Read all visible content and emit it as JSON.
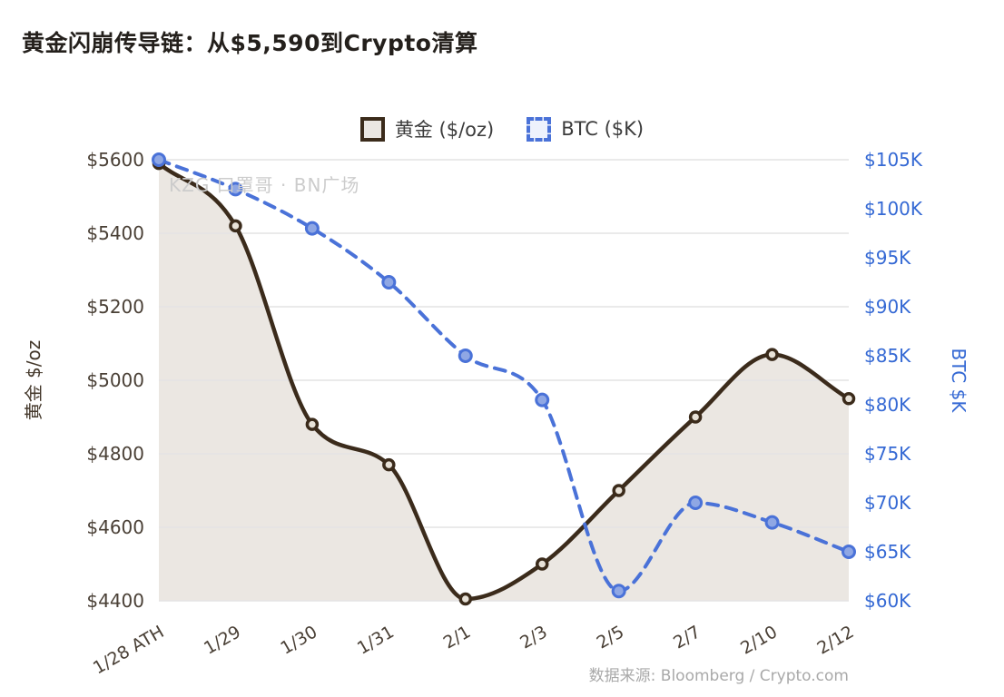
{
  "page": {
    "title": "黄金闪崩传导链：从$5,590到Crypto清算",
    "watermark": "KZG 口罩哥 · BN广场",
    "source": "数据来源: Bloomberg / Crypto.com"
  },
  "legend": {
    "items": [
      {
        "label": "黄金 ($/oz)"
      },
      {
        "label": "BTC ($K)"
      }
    ]
  },
  "chart_data": {
    "type": "line",
    "title": "黄金闪崩传导链：从$5,590到Crypto清算",
    "categories": [
      "1/28 ATH",
      "1/29",
      "1/30",
      "1/31",
      "2/1",
      "2/3",
      "2/5",
      "2/7",
      "2/10",
      "2/12"
    ],
    "series": [
      {
        "name": "黄金 ($/oz)",
        "axis": "left",
        "style": "solid",
        "area_fill": true,
        "color": "#3b2b1b",
        "area_color": "#ebe7e2",
        "marker_fill": "#e8e2d8",
        "values": [
          5590,
          5420,
          4880,
          4770,
          4405,
          4500,
          4700,
          4900,
          5070,
          4950
        ]
      },
      {
        "name": "BTC ($K)",
        "axis": "right",
        "style": "dashed",
        "area_fill": false,
        "color": "#4a72d8",
        "marker_fill": "#8fa7e4",
        "values": [
          105,
          102,
          98,
          92.5,
          85,
          80.5,
          61,
          70,
          68,
          65
        ]
      }
    ],
    "left_axis": {
      "label": "黄金 $/oz",
      "min": 4400,
      "max": 5600,
      "ticks": [
        4400,
        4600,
        4800,
        5000,
        5200,
        5400,
        5600
      ],
      "tick_labels": [
        "$4400",
        "$4600",
        "$4800",
        "$5000",
        "$5200",
        "$5400",
        "$5600"
      ]
    },
    "right_axis": {
      "label": "BTC $K",
      "min": 60,
      "max": 105,
      "ticks": [
        60,
        65,
        70,
        75,
        80,
        85,
        90,
        95,
        100,
        105
      ],
      "tick_labels": [
        "$60K",
        "$65K",
        "$70K",
        "$75K",
        "$80K",
        "$85K",
        "$90K",
        "$95K",
        "$100K",
        "$105K"
      ]
    },
    "grid": true,
    "grid_color": "#e4e4e4",
    "legend_position": "top",
    "source": "数据来源: Bloomberg / Crypto.com"
  }
}
